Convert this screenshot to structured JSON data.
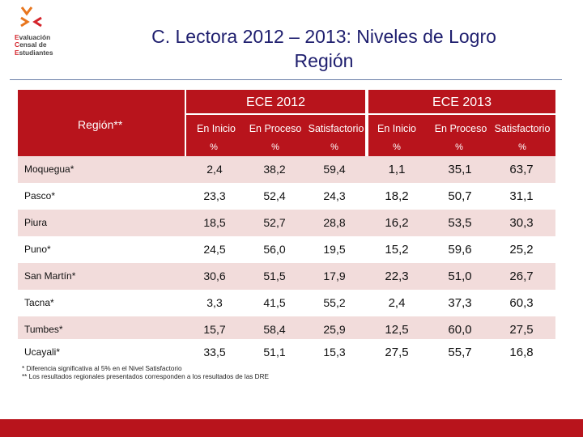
{
  "logo": {
    "lines": [
      {
        "cap": "E",
        "rest": "valuación"
      },
      {
        "cap": "C",
        "rest": "ensal de"
      },
      {
        "cap": "E",
        "rest": "studiantes"
      }
    ]
  },
  "title": {
    "line1": "C. Lectora 2012 – 2013: Niveles de Logro",
    "line2": "Región"
  },
  "table": {
    "region_header": "Región**",
    "groups": [
      "ECE 2012",
      "ECE 2013"
    ],
    "columns": [
      "En Inicio",
      "En Proceso",
      "Satisfactorio",
      "En Inicio",
      "En Proceso",
      "Satisfactorio"
    ],
    "units": [
      "%",
      "%",
      "%",
      "%",
      "%",
      "%"
    ],
    "rows": [
      {
        "name": "Moquegua*",
        "values": [
          "2,4",
          "38,2",
          "59,4",
          "1,1",
          "35,1",
          "63,7"
        ]
      },
      {
        "name": "Pasco*",
        "values": [
          "23,3",
          "52,4",
          "24,3",
          "18,2",
          "50,7",
          "31,1"
        ]
      },
      {
        "name": "Piura",
        "values": [
          "18,5",
          "52,7",
          "28,8",
          "16,2",
          "53,5",
          "30,3"
        ]
      },
      {
        "name": "Puno*",
        "values": [
          "24,5",
          "56,0",
          "19,5",
          "15,2",
          "59,6",
          "25,2"
        ]
      },
      {
        "name": "San Martín*",
        "values": [
          "30,6",
          "51,5",
          "17,9",
          "22,3",
          "51,0",
          "26,7"
        ]
      },
      {
        "name": "Tacna*",
        "values": [
          "3,3",
          "41,5",
          "55,2",
          "2,4",
          "37,3",
          "60,3"
        ]
      },
      {
        "name": "Tumbes*",
        "values": [
          "15,7",
          "58,4",
          "25,9",
          "12,5",
          "60,0",
          "27,5"
        ]
      },
      {
        "name": "Ucayali*",
        "values": [
          "33,5",
          "51,1",
          "15,3",
          "27,5",
          "55,7",
          "16,8"
        ]
      }
    ]
  },
  "footnotes": [
    "* Diferencia significativa al 5% en el Nivel Satisfactorio",
    "** Los resultados regionales presentados corresponden a los resultados de las DRE"
  ],
  "colors": {
    "accent_red": "#b8141c",
    "row_stripe": "#f2dcdb",
    "title_blue": "#1e1e6e",
    "logo_orange": "#e8761e"
  }
}
